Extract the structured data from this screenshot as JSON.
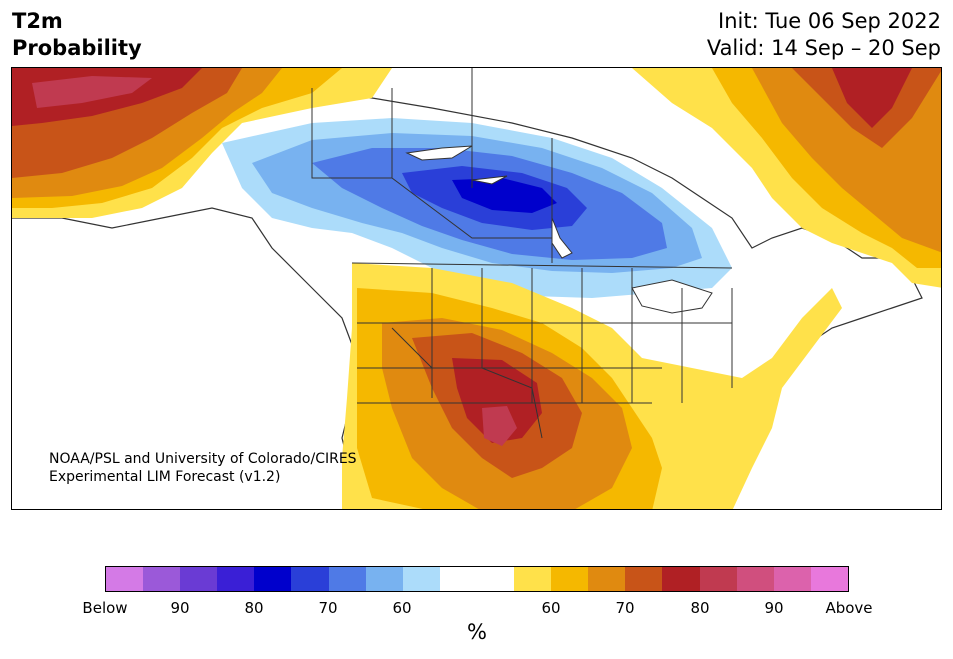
{
  "title": {
    "left_line1": "T2m",
    "left_line2": "Probability",
    "init": "Init: Tue 06 Sep 2022",
    "valid": "Valid: 14 Sep – 20 Sep"
  },
  "credit": {
    "line1": "NOAA/PSL and University of Colorado/CIRES",
    "line2": "Experimental LIM Forecast (v1.2)"
  },
  "colorbar": {
    "colors": [
      "#d47ae6",
      "#9b59d9",
      "#6a3bd4",
      "#3a1fd6",
      "#0000cc",
      "#2a3fd8",
      "#4f7ae6",
      "#78b2f0",
      "#acdcfa",
      "#ffffff",
      "#ffffff",
      "#ffe14a",
      "#f5b800",
      "#e08a10",
      "#c85418",
      "#b02024",
      "#c03a50",
      "#d04f7e",
      "#dc62ac",
      "#e878dc"
    ],
    "ticks": [
      "Below",
      "90",
      "80",
      "70",
      "60",
      "60",
      "70",
      "80",
      "90",
      "Above"
    ],
    "unit": "%"
  },
  "map": {
    "colors": {
      "above_50": "#ffe14a",
      "above_60": "#f5b800",
      "above_70": "#e08a10",
      "above_75": "#c85418",
      "above_80": "#b02024",
      "above_85": "#c03a50",
      "below_50": "#acdcfa",
      "below_60": "#78b2f0",
      "below_70": "#4f7ae6",
      "below_80": "#2a3fd8",
      "below_90": "#0000cc",
      "line": "#333333"
    }
  }
}
